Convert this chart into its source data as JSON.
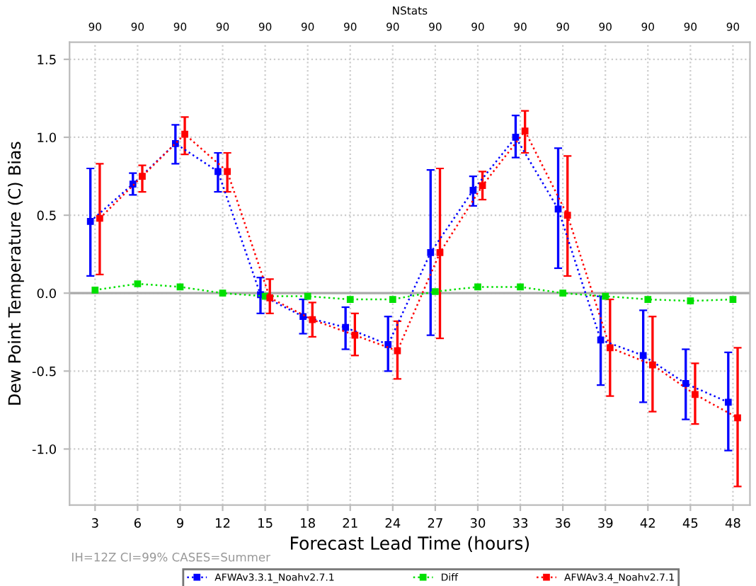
{
  "chart_data": {
    "type": "line",
    "xlabel": "Forecast Lead Time (hours)",
    "ylabel": "Dew Point Temperature (C) Bias",
    "x2label": "NStats",
    "xlim": [
      1.2,
      49.2
    ],
    "xticks": [
      3,
      6,
      9,
      12,
      15,
      18,
      21,
      24,
      27,
      30,
      33,
      36,
      39,
      42,
      45,
      48
    ],
    "ylim": [
      -1.36,
      1.61
    ],
    "yticks": [
      {
        "value": -1.0,
        "label": "-1.0"
      },
      {
        "value": -0.5,
        "label": "-0.5"
      },
      {
        "value": 0.0,
        "label": "0.0"
      },
      {
        "value": 0.5,
        "label": "0.5"
      },
      {
        "value": 1.0,
        "label": "1.0"
      },
      {
        "value": 1.5,
        "label": "1.5"
      }
    ],
    "grid": true,
    "legend": "bottom",
    "marker": "square",
    "line_style": "dotted",
    "ref_lines": [
      {
        "axis": "y",
        "value": 0,
        "color": "#aaaaaa"
      }
    ],
    "annotations": [
      "IH=12Z CI=99% CASES=Summer",
      "90",
      "90",
      "90",
      "90",
      "90",
      "90",
      "90",
      "90",
      "90",
      "90",
      "90",
      "90",
      "90",
      "90",
      "90",
      "90"
    ],
    "series": [
      {
        "name": "AFWAv3.3.1_Noahv2.7.1",
        "color": "#0000ff",
        "x": [
          2.67,
          5.67,
          8.67,
          11.67,
          14.67,
          17.67,
          20.67,
          23.67,
          26.67,
          29.67,
          32.67,
          35.67,
          38.67,
          41.67,
          44.67,
          47.67
        ],
        "values": [
          0.46,
          0.7,
          0.96,
          0.78,
          -0.01,
          -0.15,
          -0.22,
          -0.33,
          0.26,
          0.66,
          1.0,
          0.54,
          -0.3,
          -0.4,
          -0.58,
          -0.7
        ],
        "errors": [
          [
            0.11,
            0.8
          ],
          [
            0.63,
            0.77
          ],
          [
            0.83,
            1.08
          ],
          [
            0.65,
            0.9
          ],
          [
            -0.13,
            0.1
          ],
          [
            -0.26,
            -0.04
          ],
          [
            -0.36,
            -0.09
          ],
          [
            -0.5,
            -0.15
          ],
          [
            -0.27,
            0.79
          ],
          [
            0.56,
            0.75
          ],
          [
            0.87,
            1.14
          ],
          [
            0.16,
            0.93
          ],
          [
            -0.59,
            -0.02
          ],
          [
            -0.7,
            -0.11
          ],
          [
            -0.81,
            -0.36
          ],
          [
            -1.01,
            -0.38
          ]
        ]
      },
      {
        "name": "Diff",
        "color": "#00e000",
        "x": [
          3,
          6,
          9,
          12,
          15,
          18,
          21,
          24,
          27,
          30,
          33,
          36,
          39,
          42,
          45,
          48
        ],
        "values": [
          0.02,
          0.06,
          0.04,
          0.0,
          -0.02,
          -0.02,
          -0.04,
          -0.04,
          0.01,
          0.04,
          0.04,
          0.0,
          -0.02,
          -0.04,
          -0.05,
          -0.04
        ]
      },
      {
        "name": "AFWAv3.4_Noahv2.7.1",
        "color": "#ff0000",
        "x": [
          3.33,
          6.33,
          9.33,
          12.33,
          15.33,
          18.33,
          21.33,
          24.33,
          27.33,
          30.33,
          33.33,
          36.33,
          39.33,
          42.33,
          45.33,
          48.33
        ],
        "values": [
          0.48,
          0.75,
          1.02,
          0.78,
          -0.03,
          -0.17,
          -0.27,
          -0.37,
          0.26,
          0.69,
          1.04,
          0.5,
          -0.35,
          -0.46,
          -0.65,
          -0.8
        ],
        "errors": [
          [
            0.12,
            0.83
          ],
          [
            0.65,
            0.82
          ],
          [
            0.89,
            1.13
          ],
          [
            0.65,
            0.9
          ],
          [
            -0.13,
            0.09
          ],
          [
            -0.28,
            -0.06
          ],
          [
            -0.4,
            -0.13
          ],
          [
            -0.55,
            -0.18
          ],
          [
            -0.29,
            0.8
          ],
          [
            0.6,
            0.78
          ],
          [
            0.9,
            1.17
          ],
          [
            0.11,
            0.88
          ],
          [
            -0.66,
            -0.04
          ],
          [
            -0.76,
            -0.15
          ],
          [
            -0.84,
            -0.45
          ],
          [
            -1.24,
            -0.35
          ]
        ]
      }
    ]
  }
}
